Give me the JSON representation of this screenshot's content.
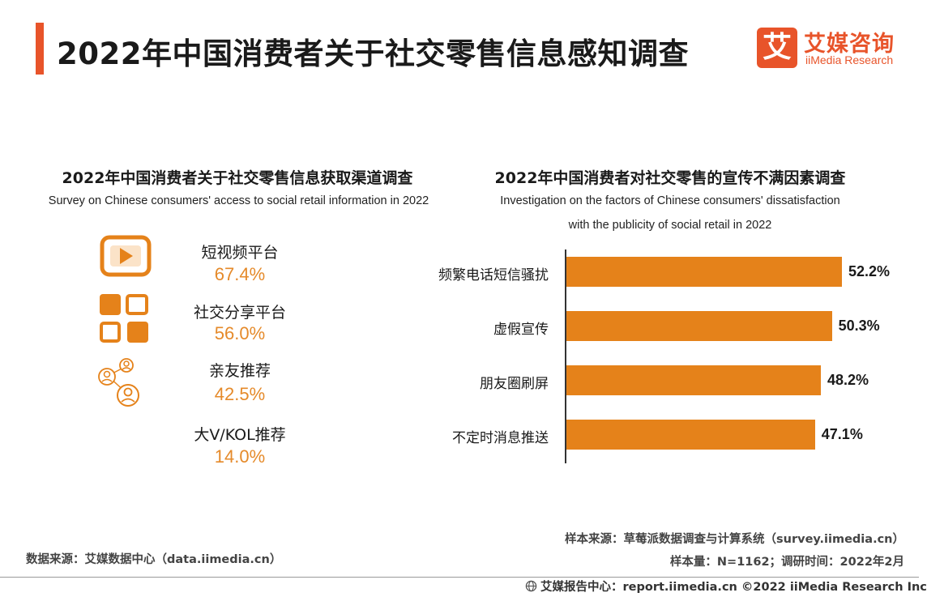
{
  "header": {
    "title": "2022年中国消费者关于社交零售信息感知调查"
  },
  "logo": {
    "mark": "艾",
    "name_cn": "艾媒咨询",
    "name_en": "iiMedia Research"
  },
  "left_panel": {
    "title": "2022年中国消费者关于社交零售信息获取渠道调查",
    "subtitle": "Survey on Chinese consumers' access to social retail information in 2022",
    "items": [
      {
        "label": "短视频平台",
        "value": "67.4%",
        "icon": "video-play-icon"
      },
      {
        "label": "社交分享平台",
        "value": "56.0%",
        "icon": "grid-apps-icon"
      },
      {
        "label": "亲友推荐",
        "value": "42.5%",
        "icon": "friends-network-icon"
      },
      {
        "label": "大V/KOL推荐",
        "value": "14.0%",
        "icon": ""
      }
    ]
  },
  "right_panel": {
    "title": "2022年中国消费者对社交零售的宣传不满因素调查",
    "subtitle_line1": "Investigation on the factors of Chinese consumers' dissatisfaction",
    "subtitle_line2": "with the publicity of social retail in 2022"
  },
  "chart_data": [
    {
      "type": "table",
      "title": "2022年中国消费者关于社交零售信息获取渠道调查",
      "subtitle": "Survey on Chinese consumers' access to social retail information in 2022",
      "categories": [
        "短视频平台",
        "社交分享平台",
        "亲友推荐",
        "大V/KOL推荐"
      ],
      "values": [
        67.4,
        56.0,
        42.5,
        14.0
      ],
      "unit": "%"
    },
    {
      "type": "bar",
      "orientation": "horizontal",
      "title": "2022年中国消费者对社交零售的宣传不满因素调查",
      "subtitle": "Investigation on the factors of Chinese consumers' dissatisfaction with the publicity of social retail in 2022",
      "categories": [
        "频繁电话短信骚扰",
        "虚假宣传",
        "朋友圈刷屏",
        "不定时消息推送"
      ],
      "values": [
        52.2,
        50.3,
        48.2,
        47.1
      ],
      "value_labels": [
        "52.2%",
        "50.3%",
        "48.2%",
        "47.1%"
      ],
      "bar_color": "#e5821a",
      "grid": false,
      "legend": "none"
    }
  ],
  "notes": {
    "sample_source": "样本来源：草莓派数据调查与计算系统（survey.iimedia.cn）",
    "sample_size": "样本量：N=1162；调研时间：2022年2月",
    "data_source": "数据来源：艾媒数据中心（data.iimedia.cn）"
  },
  "footer": {
    "text": "艾媒报告中心：report.iimedia.cn  ©2022  iiMedia Research  Inc"
  },
  "colors": {
    "accent": "#e8542a",
    "bar": "#e5821a",
    "value_text": "#e58a2a"
  }
}
